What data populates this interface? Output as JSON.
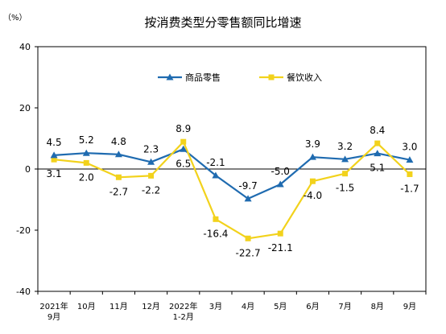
{
  "chart_data": {
    "type": "line",
    "title": "按消费类型分零售额同比增速",
    "unit": "（%）",
    "categories": [
      [
        "2021年",
        "9月"
      ],
      [
        "10月"
      ],
      [
        "11月"
      ],
      [
        "12月"
      ],
      [
        "2022年",
        "1-2月"
      ],
      [
        "3月"
      ],
      [
        "4月"
      ],
      [
        "5月"
      ],
      [
        "6月"
      ],
      [
        "7月"
      ],
      [
        "8月"
      ],
      [
        "9月"
      ]
    ],
    "ylim": [
      -40,
      40
    ],
    "yticks": [
      "40",
      "20",
      "0",
      "-20",
      "-40"
    ],
    "series": [
      {
        "name": "商品零售",
        "color": "#1f6bb0",
        "marker": "triangle",
        "values": [
          4.5,
          5.2,
          4.8,
          2.3,
          6.5,
          -2.1,
          -9.7,
          -5.0,
          3.9,
          3.2,
          5.1,
          3.0
        ],
        "labels": [
          "4.5",
          "5.2",
          "4.8",
          "2.3",
          "6.5",
          "-2.1",
          "-9.7",
          "-5.0",
          "3.9",
          "3.2",
          "5.1",
          "3.0"
        ]
      },
      {
        "name": "餐饮收入",
        "color": "#f2d21c",
        "marker": "square",
        "values": [
          3.1,
          2.0,
          -2.7,
          -2.2,
          8.9,
          -16.4,
          -22.7,
          -21.1,
          -4.0,
          -1.5,
          8.4,
          -1.7
        ],
        "labels": [
          "3.1",
          "2.0",
          "-2.7",
          "-2.2",
          "8.9",
          "-16.4",
          "-22.7",
          "-21.1",
          "-4.0",
          "-1.5",
          "8.4",
          "-1.7"
        ]
      }
    ],
    "legend": "top-center",
    "grid": false
  }
}
